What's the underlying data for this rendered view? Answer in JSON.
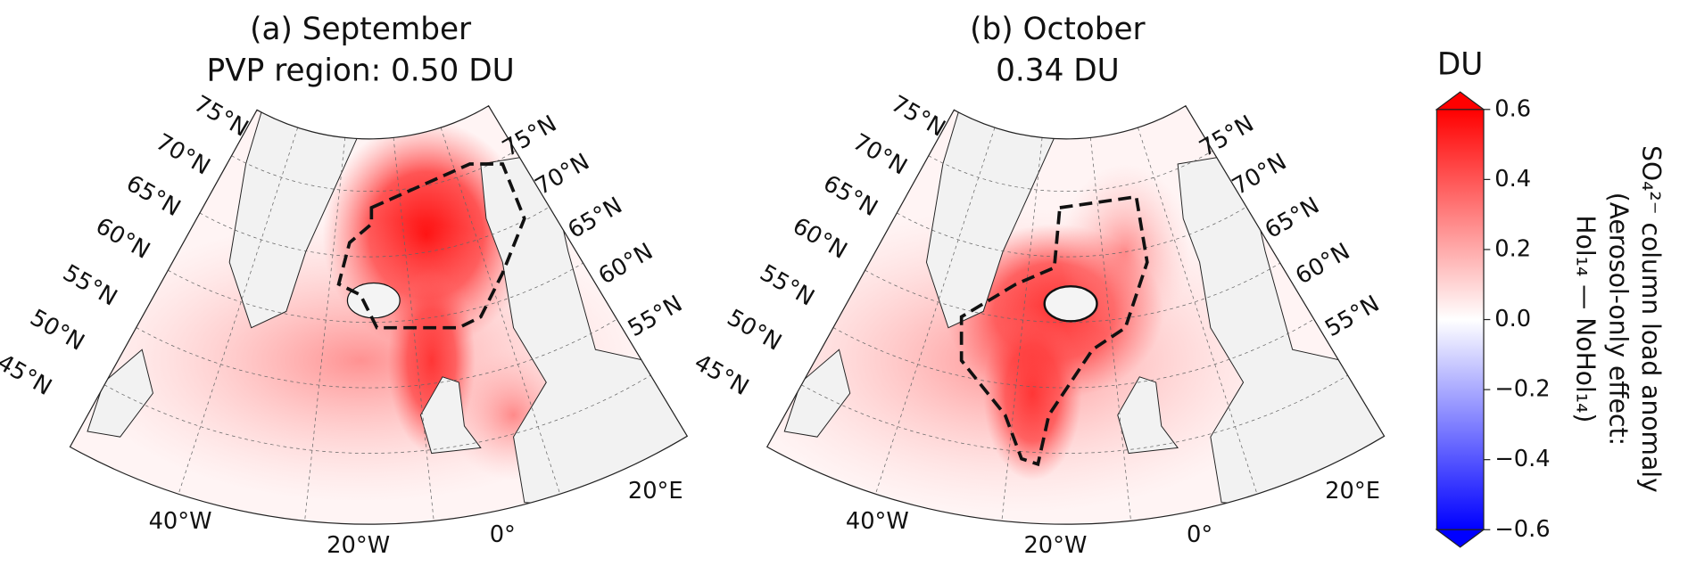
{
  "panels": [
    {
      "title_lines": [
        "(a) September",
        "PVP region: 0.50 DU"
      ],
      "left_labels": [
        "75°N",
        "70°N",
        "65°N",
        "60°N",
        "55°N",
        "50°N",
        "45°N"
      ],
      "right_labels": [
        "75°N",
        "70°N",
        "65°N",
        "60°N",
        "55°N"
      ],
      "bottom_labels": [
        "40°W",
        "20°W",
        "0°",
        "20°E"
      ]
    },
    {
      "title_lines": [
        "(b) October",
        "0.34 DU"
      ],
      "left_labels": [
        "75°N",
        "70°N",
        "65°N",
        "60°N",
        "55°N",
        "50°N",
        "45°N"
      ],
      "right_labels": [
        "75°N",
        "70°N",
        "65°N",
        "60°N",
        "55°N"
      ],
      "bottom_labels": [
        "40°W",
        "20°W",
        "0°",
        "20°E"
      ]
    }
  ],
  "colorbar": {
    "units": "DU",
    "label_lines": [
      "SO₄²⁻ column load anomaly",
      "(Aerosol-only effect:",
      "Hol₁₄ — NoHol₁₄)"
    ],
    "lim": [
      -0.6,
      0.6
    ],
    "ticks": [
      0.6,
      0.4,
      0.2,
      {
        "value": 0,
        "label": "0.0"
      },
      {
        "value": -0.2,
        "label": "−0.2"
      },
      {
        "value": -0.4,
        "label": "−0.4"
      },
      {
        "value": -0.6,
        "label": "−0.6"
      }
    ]
  }
}
